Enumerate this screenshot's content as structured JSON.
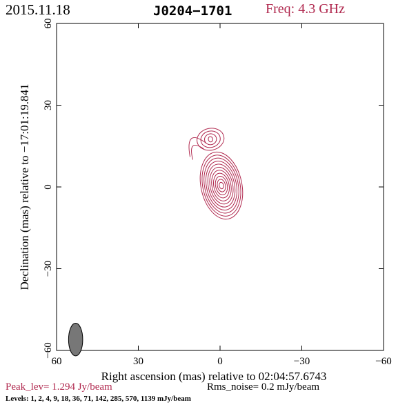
{
  "header": {
    "date": "2015.11.18",
    "source": "J0204−1701",
    "frequency": "Freq: 4.3 GHz"
  },
  "axes": {
    "xlabel": "Right ascension (mas) relative to 02:04:57.6743",
    "ylabel": "Declination (mas) relative to −17:01:19.841",
    "xlim": [
      60,
      -60
    ],
    "ylim": [
      -60,
      60
    ],
    "xticks": [
      60,
      30,
      0,
      -30,
      -60
    ],
    "yticks": [
      -60,
      -30,
      0,
      30,
      60
    ],
    "xtick_labels": [
      "60",
      "30",
      "0",
      "−30",
      "−60"
    ],
    "ytick_labels": [
      "−60",
      "−30",
      "0",
      "30",
      "60"
    ]
  },
  "footer": {
    "peak": "Peak_lev=  1.294 Jy/beam",
    "rms": "Rms_noise=  0.2 mJy/beam",
    "levels": "Levels:   1,    2,    4,    9,   18,   36,   71, 142, 285, 570, 1139 mJy/beam"
  },
  "colors": {
    "contour": "#b0284e",
    "beam": "#777777",
    "accent": "#b0284e"
  },
  "chart_data": {
    "type": "contour",
    "title": "J0204−1701",
    "levels_mJy": [
      1,
      2,
      4,
      9,
      18,
      36,
      71,
      142,
      285,
      570,
      1139
    ],
    "peak_Jy_per_beam": 1.294,
    "rms_mJy_per_beam": 0.2,
    "core": {
      "ra": -0.5,
      "dec": 0.5,
      "half_width_ra": [
        7.5,
        0.8
      ],
      "half_width_dec": [
        12.5,
        1.2
      ],
      "count": 11
    },
    "jet_component": {
      "ra": 3.5,
      "dec": 17.5,
      "half_width_ra": [
        5.0,
        0.8
      ],
      "half_width_dec": [
        4.0,
        1.0
      ],
      "count": 4
    },
    "beam": {
      "ra": 53.0,
      "dec": -56.0,
      "major": 6.0,
      "minor": 2.6
    }
  }
}
